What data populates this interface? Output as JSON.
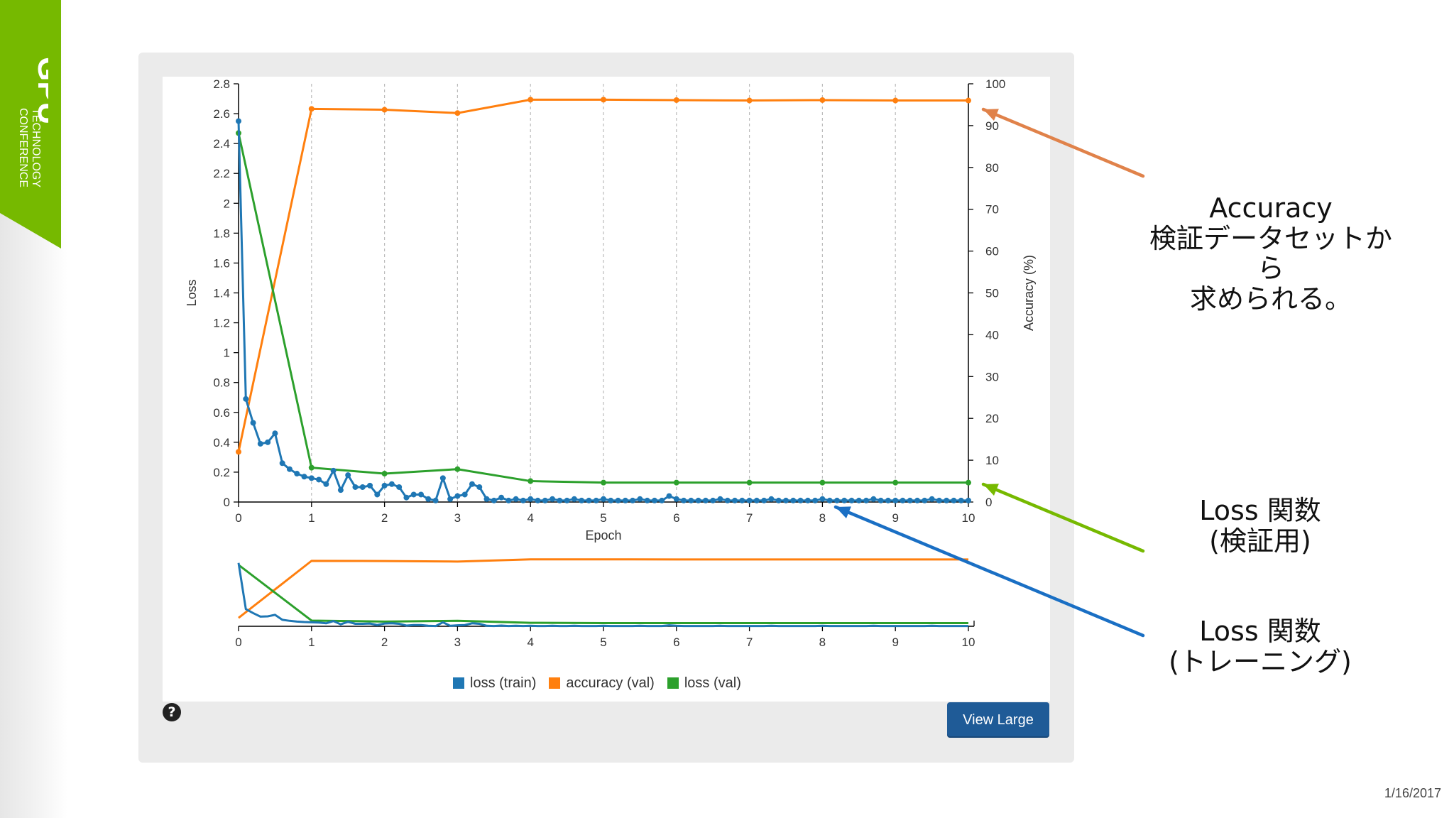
{
  "brand": {
    "title": "GPU",
    "line1": "TECHNOLOGY",
    "line2": "CONFERENCE",
    "color": "#76b900"
  },
  "date": "1/16/2017",
  "view_large_label": "View Large",
  "help_icon": "question-circle-icon",
  "annotations": {
    "accuracy": {
      "line1": "Accuracy",
      "line2": "検証データセットから",
      "line3": "求められる。",
      "arrow_color": "#e0824a"
    },
    "loss_val": {
      "line1": "Loss 関数",
      "line2": "(検証用)",
      "arrow_color": "#76b900"
    },
    "loss_train": {
      "line1": "Loss 関数",
      "line2": "(トレーニング)",
      "arrow_color": "#1a6fc4"
    }
  },
  "chart_data": {
    "type": "line",
    "xlabel": "Epoch",
    "ylabel_left": "Loss",
    "ylabel_right": "Accuracy (%)",
    "xlim": [
      0,
      10
    ],
    "ylim_left": [
      0,
      2.8
    ],
    "ylim_right": [
      0,
      100
    ],
    "x_ticks": [
      "0",
      "1",
      "2",
      "3",
      "4",
      "5",
      "6",
      "7",
      "8",
      "9",
      "10"
    ],
    "y_ticks_left": [
      "0",
      "0.2",
      "0.4",
      "0.6",
      "0.8",
      "1",
      "1.2",
      "1.4",
      "1.6",
      "1.8",
      "2",
      "2.2",
      "2.4",
      "2.6",
      "2.8"
    ],
    "y_ticks_right": [
      "0",
      "10",
      "20",
      "30",
      "40",
      "50",
      "60",
      "70",
      "80",
      "90",
      "100"
    ],
    "grid": "vertical dashed at integer epochs",
    "legend_position": "bottom",
    "series": [
      {
        "name": "loss (train)",
        "axis": "left",
        "color": "#1f77b4",
        "x": [
          0,
          0.1,
          0.2,
          0.3,
          0.4,
          0.5,
          0.6,
          0.7,
          0.8,
          0.9,
          1.0,
          1.1,
          1.2,
          1.3,
          1.4,
          1.5,
          1.6,
          1.7,
          1.8,
          1.9,
          2.0,
          2.1,
          2.2,
          2.3,
          2.4,
          2.5,
          2.6,
          2.7,
          2.8,
          2.9,
          3.0,
          3.1,
          3.2,
          3.3,
          3.4,
          3.5,
          3.6,
          3.7,
          3.8,
          3.9,
          4.0,
          4.1,
          4.2,
          4.3,
          4.4,
          4.5,
          4.6,
          4.7,
          4.8,
          4.9,
          5.0,
          5.1,
          5.2,
          5.3,
          5.4,
          5.5,
          5.6,
          5.7,
          5.8,
          5.9,
          6.0,
          6.1,
          6.2,
          6.3,
          6.4,
          6.5,
          6.6,
          6.7,
          6.8,
          6.9,
          7.0,
          7.1,
          7.2,
          7.3,
          7.4,
          7.5,
          7.6,
          7.7,
          7.8,
          7.9,
          8.0,
          8.1,
          8.2,
          8.3,
          8.4,
          8.5,
          8.6,
          8.7,
          8.8,
          8.9,
          9.0,
          9.1,
          9.2,
          9.3,
          9.4,
          9.5,
          9.6,
          9.7,
          9.8,
          9.9,
          10.0
        ],
        "values": [
          2.55,
          0.69,
          0.53,
          0.39,
          0.4,
          0.46,
          0.26,
          0.22,
          0.19,
          0.17,
          0.16,
          0.15,
          0.12,
          0.21,
          0.08,
          0.18,
          0.1,
          0.1,
          0.11,
          0.05,
          0.11,
          0.12,
          0.1,
          0.03,
          0.05,
          0.05,
          0.02,
          0.01,
          0.16,
          0.02,
          0.04,
          0.05,
          0.12,
          0.1,
          0.02,
          0.01,
          0.03,
          0.01,
          0.02,
          0.01,
          0.02,
          0.01,
          0.01,
          0.02,
          0.01,
          0.01,
          0.02,
          0.01,
          0.01,
          0.01,
          0.02,
          0.01,
          0.01,
          0.01,
          0.01,
          0.02,
          0.01,
          0.01,
          0.01,
          0.04,
          0.02,
          0.01,
          0.01,
          0.01,
          0.01,
          0.01,
          0.02,
          0.01,
          0.01,
          0.01,
          0.01,
          0.01,
          0.01,
          0.02,
          0.01,
          0.01,
          0.01,
          0.01,
          0.01,
          0.01,
          0.02,
          0.01,
          0.01,
          0.01,
          0.01,
          0.01,
          0.01,
          0.02,
          0.01,
          0.01,
          0.01,
          0.01,
          0.01,
          0.01,
          0.01,
          0.02,
          0.01,
          0.01,
          0.01,
          0.01,
          0.01
        ]
      },
      {
        "name": "accuracy (val)",
        "axis": "right",
        "color": "#ff7f0e",
        "x": [
          0,
          1,
          2,
          3,
          4,
          5,
          6,
          7,
          8,
          9,
          10
        ],
        "values": [
          12,
          94,
          93.8,
          93,
          96.2,
          96.2,
          96.1,
          96,
          96.1,
          96,
          96
        ]
      },
      {
        "name": "loss (val)",
        "axis": "left",
        "color": "#2ca02c",
        "x": [
          0,
          1,
          2,
          3,
          4,
          5,
          6,
          7,
          8,
          9,
          10
        ],
        "values": [
          2.47,
          0.23,
          0.19,
          0.22,
          0.14,
          0.13,
          0.13,
          0.13,
          0.13,
          0.13,
          0.13
        ]
      }
    ]
  }
}
